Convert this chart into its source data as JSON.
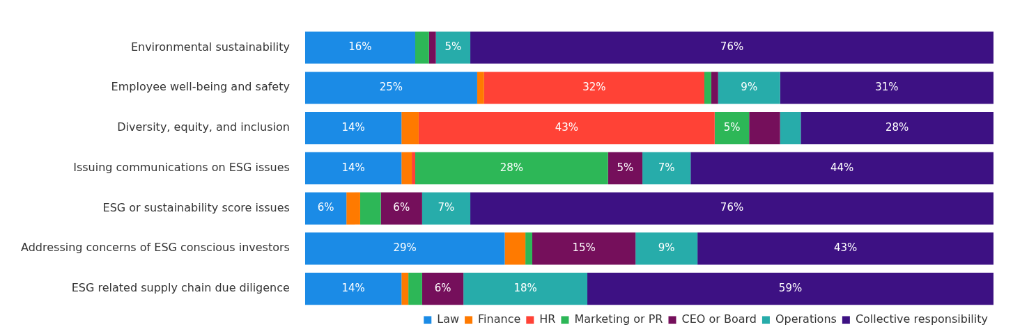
{
  "chart_data": {
    "type": "bar",
    "orientation": "horizontal",
    "stacked": true,
    "legend": "bottom",
    "grid": false,
    "categories": [
      "Environmental sustainability",
      "Employee well-being and safety",
      "Diversity, equity, and inclusion",
      "Issuing communications on ESG issues",
      "ESG or sustainability score issues",
      "Addressing concerns of ESG conscious investors",
      "ESG related supply chain due diligence"
    ],
    "series": [
      {
        "name": "Law",
        "color": "#1b8be6",
        "values": [
          16,
          25,
          14,
          14,
          6,
          29,
          14
        ],
        "value_labels": [
          "16%",
          "25%",
          "14%",
          "14%",
          "6%",
          "29%",
          "14%"
        ]
      },
      {
        "name": "Finance",
        "color": "#ff7a00",
        "values": [
          0,
          1,
          2.5,
          1.5,
          2,
          3,
          1
        ],
        "value_labels": [
          null,
          null,
          null,
          null,
          null,
          null,
          null
        ]
      },
      {
        "name": "HR",
        "color": "#ff4236",
        "values": [
          0,
          32,
          43,
          0.5,
          0,
          0,
          0
        ],
        "value_labels": [
          null,
          "32%",
          "43%",
          null,
          null,
          null,
          null
        ]
      },
      {
        "name": "Marketing or PR",
        "color": "#2db757",
        "values": [
          2,
          1,
          5,
          28,
          3,
          1,
          2
        ],
        "value_labels": [
          null,
          null,
          "5%",
          "28%",
          null,
          null,
          null
        ]
      },
      {
        "name": "CEO or Board",
        "color": "#750f5b",
        "values": [
          1,
          1,
          4.5,
          5,
          6,
          15,
          6
        ],
        "value_labels": [
          null,
          null,
          null,
          "5%",
          "6%",
          "15%",
          "6%"
        ]
      },
      {
        "name": "Operations",
        "color": "#27acaa",
        "values": [
          5,
          9,
          3,
          7,
          7,
          9,
          18
        ],
        "value_labels": [
          "5%",
          "9%",
          null,
          "7%",
          "7%",
          "9%",
          "18%"
        ]
      },
      {
        "name": "Collective responsibility",
        "color": "#3d1183",
        "values": [
          76,
          31,
          28,
          44,
          76,
          43,
          59
        ],
        "value_labels": [
          "76%",
          "31%",
          "28%",
          "44%",
          "76%",
          "43%",
          "59%"
        ]
      }
    ]
  }
}
